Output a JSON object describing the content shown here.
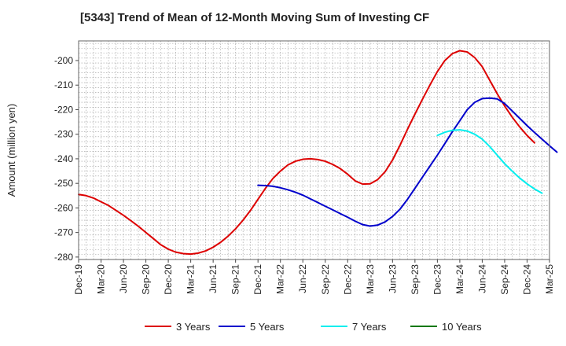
{
  "chart_data": {
    "type": "line",
    "title": "[5343]  Trend of Mean of 12-Month Moving Sum of Investing CF",
    "xlabel": "",
    "ylabel": "Amount (million yen)",
    "ylim": [
      -281,
      -192
    ],
    "yticks": [
      -200,
      -210,
      -220,
      -230,
      -240,
      -250,
      -260,
      -270,
      -280
    ],
    "x_tick_labels": [
      "Dec-19",
      "Mar-20",
      "Jun-20",
      "Sep-20",
      "Dec-20",
      "Mar-21",
      "Jun-21",
      "Sep-21",
      "Dec-21",
      "Mar-22",
      "Jun-22",
      "Sep-22",
      "Dec-22",
      "Mar-23",
      "Jun-23",
      "Sep-23",
      "Dec-23",
      "Mar-24",
      "Jun-24",
      "Sep-24",
      "Dec-24",
      "Mar-25"
    ],
    "grid": true,
    "legend_position": "bottom",
    "series": [
      {
        "name": "3 Years",
        "color": "#dd0000",
        "start_index": 0,
        "values": [
          -254.5,
          -255,
          -256,
          -257.5,
          -259,
          -261,
          -263,
          -265.2,
          -267.5,
          -270,
          -272.5,
          -275,
          -276.8,
          -278,
          -278.6,
          -278.8,
          -278.4,
          -277.5,
          -276,
          -274,
          -271.5,
          -268.5,
          -265,
          -261,
          -256.5,
          -252,
          -248,
          -245,
          -242.5,
          -241,
          -240.2,
          -240,
          -240.3,
          -241,
          -242.3,
          -244,
          -246.3,
          -249,
          -250.3,
          -250.2,
          -248.5,
          -245.3,
          -240.5,
          -234.5,
          -228,
          -221.8,
          -215.8,
          -210,
          -204.5,
          -200,
          -197.2,
          -196,
          -196.5,
          -198.8,
          -202.5,
          -208,
          -213.5,
          -218.5,
          -223,
          -227,
          -230.5,
          -233.5
        ]
      },
      {
        "name": "5 Years",
        "color": "#0000cc",
        "start_index": 24,
        "values": [
          -250.8,
          -250.9,
          -251.2,
          -251.8,
          -252.6,
          -253.6,
          -254.8,
          -256.3,
          -257.8,
          -259.3,
          -260.8,
          -262.3,
          -263.8,
          -265.4,
          -266.8,
          -267.4,
          -267,
          -265.7,
          -263.5,
          -260.5,
          -256.5,
          -252,
          -247.5,
          -243,
          -238.5,
          -233.8,
          -229,
          -224.5,
          -220,
          -217,
          -215.5,
          -215.3,
          -215.6,
          -217.5,
          -220.5,
          -223.5,
          -226.5,
          -229.3,
          -232,
          -234.7,
          -237.3
        ]
      },
      {
        "name": "7 Years",
        "color": "#00eeee",
        "start_index": 48,
        "values": [
          -230.5,
          -229.2,
          -228.4,
          -228.2,
          -228.7,
          -230,
          -232,
          -235,
          -238.5,
          -242,
          -245,
          -247.8,
          -250.2,
          -252.3,
          -254
        ]
      },
      {
        "name": "10 Years",
        "color": "#007700",
        "start_index": 0,
        "values": []
      }
    ]
  }
}
